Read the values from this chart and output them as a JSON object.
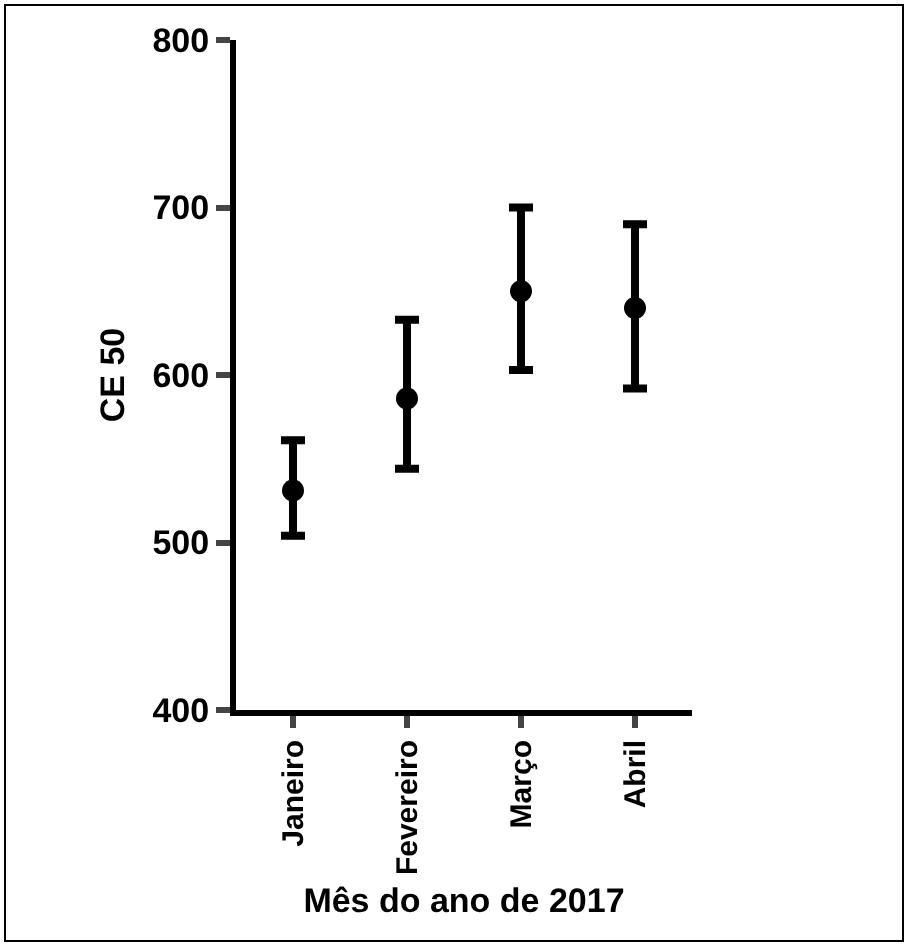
{
  "chart_data": {
    "type": "scatter",
    "xlabel": "Mês do ano de 2017",
    "ylabel": "CE 50",
    "categories": [
      "Janeiro",
      "Fevereiro",
      "Março",
      "Abril"
    ],
    "values": [
      531,
      586,
      650,
      640
    ],
    "errors": [
      [
        504,
        561
      ],
      [
        544,
        633
      ],
      [
        603,
        700
      ],
      [
        592,
        690
      ]
    ],
    "color": "#000000",
    "marker": "circle",
    "ylim": [
      400,
      800
    ],
    "yticks": [
      400,
      500,
      600,
      700,
      800
    ],
    "grid": false,
    "legend": false
  }
}
